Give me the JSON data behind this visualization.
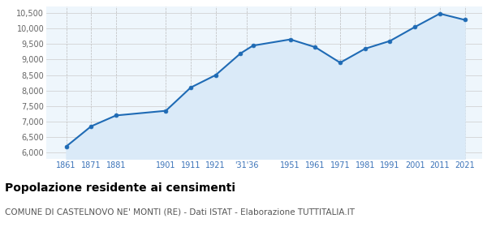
{
  "years": [
    1861,
    1871,
    1881,
    1901,
    1911,
    1921,
    1931,
    1936,
    1951,
    1961,
    1971,
    1981,
    1991,
    2001,
    2011,
    2021
  ],
  "population": [
    6200,
    6850,
    7200,
    7350,
    8100,
    8500,
    9200,
    9450,
    9650,
    9400,
    8900,
    9350,
    9600,
    10050,
    10480,
    10280
  ],
  "ylim": [
    5800,
    10700
  ],
  "yticks": [
    6000,
    6500,
    7000,
    7500,
    8000,
    8500,
    9000,
    9500,
    10000,
    10500
  ],
  "xtick_positions": [
    1861,
    1871,
    1881,
    1901,
    1911,
    1921,
    1933.5,
    1951,
    1961,
    1971,
    1981,
    1991,
    2001,
    2011,
    2021
  ],
  "xtick_labels": [
    "1861",
    "1871",
    "1881",
    "1901",
    "1911",
    "1921",
    "'31'36",
    "1951",
    "1961",
    "1971",
    "1981",
    "1991",
    "2001",
    "2011",
    "2021"
  ],
  "xlim": [
    1853,
    2028
  ],
  "line_color": "#1f6bb5",
  "fill_color": "#daeaf8",
  "marker_color": "#1f6bb5",
  "grid_color_h": "#cccccc",
  "grid_color_v": "#bbbbbb",
  "background_color": "#eef6fc",
  "title": "Popolazione residente ai censimenti",
  "subtitle": "COMUNE DI CASTELNOVO NE' MONTI (RE) - Dati ISTAT - Elaborazione TUTTITALIA.IT",
  "title_fontsize": 10,
  "subtitle_fontsize": 7.5,
  "tick_fontsize": 7,
  "ytick_fontsize": 7,
  "tick_color_x": "#3a72b8",
  "tick_color_y": "#666666"
}
